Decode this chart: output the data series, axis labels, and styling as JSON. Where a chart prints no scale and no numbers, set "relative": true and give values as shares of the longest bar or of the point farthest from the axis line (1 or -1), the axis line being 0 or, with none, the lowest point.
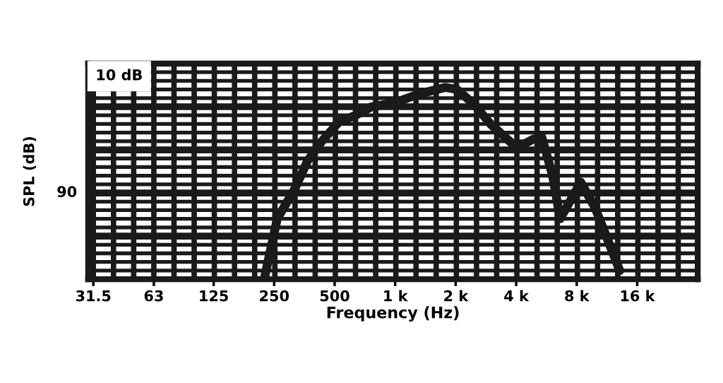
{
  "chart_data": {
    "type": "line",
    "xlabel": "Frequency (Hz)",
    "ylabel": "SPL (dB)",
    "annotations": [
      "10 dB",
      "90"
    ],
    "relative": true,
    "log": "x",
    "xlim": [
      29.7,
      32000
    ],
    "xticks": [
      31.5,
      63,
      125,
      250,
      500,
      {
        "value": 1000,
        "label": "1 k"
      },
      {
        "value": 2000,
        "label": "2 k"
      },
      {
        "value": 4000,
        "label": "4 k"
      },
      {
        "value": 8000,
        "label": "8 k"
      },
      {
        "value": 16000,
        "label": "16 k"
      }
    ],
    "grid": true,
    "line_style": "solid",
    "series": [
      {
        "color": "#1a1a1a",
        "x": [
          223,
          259,
          317,
          367,
          432,
          525,
          634,
          764,
          876,
          1000,
          1317,
          1777,
          2030,
          2475,
          2980,
          4030,
          4860,
          5360,
          6070,
          6620,
          8380,
          9890,
          13100
        ],
        "values": [
          0,
          0.315,
          0.472,
          0.618,
          0.719,
          0.82,
          0.854,
          0.899,
          0.91,
          0.921,
          0.966,
          1,
          0.989,
          0.91,
          0.809,
          0.685,
          0.73,
          0.742,
          0.539,
          0.315,
          0.506,
          0.371,
          0.045
        ]
      }
    ]
  }
}
